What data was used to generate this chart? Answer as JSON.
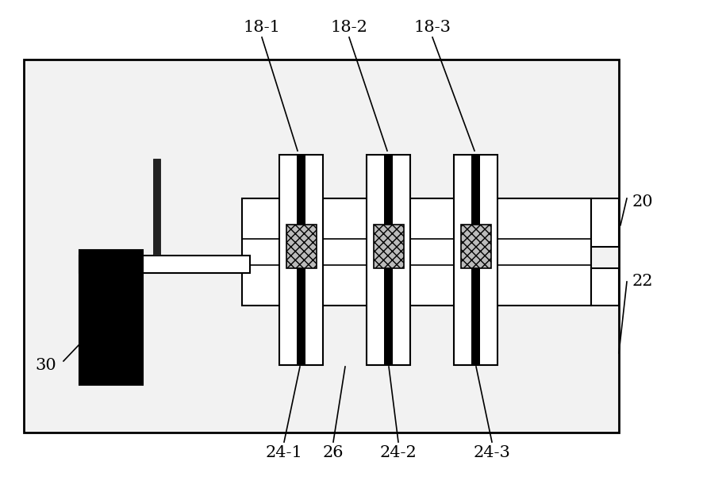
{
  "fig_width": 8.86,
  "fig_height": 6.25,
  "bg_color": "#ffffff",
  "board_fill": "#f0f0f0",
  "white": "#ffffff",
  "black": "#000000",
  "label_fontsize": 15
}
